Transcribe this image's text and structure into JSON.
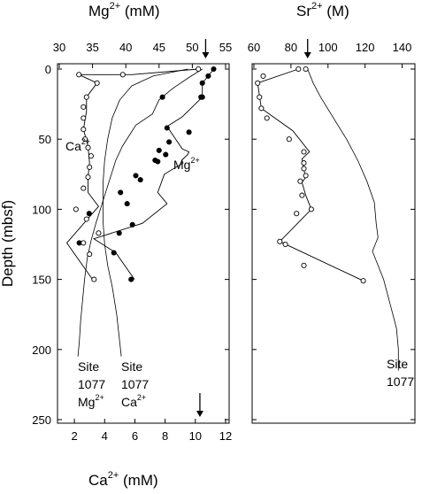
{
  "figure": {
    "ylabel": "Depth (mbsf)",
    "left_top_label": "Mg2+ (mM)",
    "left_bottom_label": "Ca2+ (mM)",
    "right_top_label": "Sr2+ (M)"
  },
  "chart_data": [
    {
      "type": "line",
      "panel": "left",
      "ylabel": "Depth (mbsf)",
      "ylim": [
        250,
        0
      ],
      "y_ticks": [
        0,
        50,
        100,
        150,
        200,
        250
      ],
      "top_axis": {
        "label": "Mg2+ (mM)",
        "range": [
          30,
          55
        ],
        "ticks": [
          30,
          35,
          40,
          45,
          50,
          55
        ]
      },
      "bottom_axis": {
        "label": "Ca2+ (mM)",
        "range": [
          1,
          12
        ],
        "ticks": [
          2,
          4,
          6,
          8,
          10,
          12
        ]
      },
      "series": [
        {
          "name": "Mg2+",
          "axis": "top",
          "marker": "filled-circle",
          "points": [
            [
              53.2,
              0
            ],
            [
              52.4,
              5
            ],
            [
              51.5,
              10
            ],
            [
              51.5,
              20
            ],
            [
              51.3,
              20
            ],
            [
              45.5,
              20
            ],
            [
              46.2,
              42
            ],
            [
              49.5,
              45
            ],
            [
              46.5,
              52
            ],
            [
              45,
              58
            ],
            [
              46,
              61
            ],
            [
              44.4,
              65
            ],
            [
              44.8,
              66
            ],
            [
              41.5,
              76
            ],
            [
              42.2,
              79
            ],
            [
              39.2,
              88
            ],
            [
              40.2,
              96
            ],
            [
              34.5,
              103
            ],
            [
              41,
              111
            ],
            [
              39,
              117
            ],
            [
              33,
              124
            ],
            [
              38.2,
              131
            ],
            [
              40.8,
              150
            ]
          ],
          "trace_points": [
            [
              53.2,
              0
            ],
            [
              52.4,
              5
            ],
            [
              51.5,
              10
            ],
            [
              51.5,
              20
            ],
            [
              48.5,
              34
            ],
            [
              46.2,
              41
            ],
            [
              47.5,
              50
            ],
            [
              48.5,
              57
            ],
            [
              49.5,
              59
            ],
            [
              49.3,
              61
            ],
            [
              48.4,
              65
            ],
            [
              48.6,
              67
            ],
            [
              45.8,
              75
            ],
            [
              44.8,
              88
            ],
            [
              46.2,
              96
            ],
            [
              42.5,
              110
            ],
            [
              35.2,
              121
            ],
            [
              38.5,
              131
            ],
            [
              41.3,
              150
            ]
          ]
        },
        {
          "name": "Ca2+",
          "axis": "bottom",
          "marker": "open-circle",
          "points": [
            [
              10.2,
              0
            ],
            [
              5.2,
              4
            ],
            [
              2.3,
              4
            ],
            [
              3.5,
              10
            ],
            [
              2.8,
              20
            ],
            [
              2.6,
              27
            ],
            [
              2.6,
              35
            ],
            [
              2.6,
              43
            ],
            [
              2.7,
              50
            ],
            [
              2.9,
              56
            ],
            [
              3.1,
              62
            ],
            [
              3.0,
              70
            ],
            [
              2.9,
              77
            ],
            [
              2.6,
              85
            ],
            [
              2.1,
              100
            ],
            [
              2.8,
              107
            ],
            [
              3.6,
              117
            ],
            [
              2.6,
              124
            ],
            [
              3.0,
              132
            ],
            [
              3.3,
              150
            ]
          ],
          "trace_points": [
            [
              10.2,
              0
            ],
            [
              5.8,
              4
            ],
            [
              2.3,
              4
            ],
            [
              3.5,
              10
            ],
            [
              2.8,
              20
            ],
            [
              2.8,
              30
            ],
            [
              2.6,
              43
            ],
            [
              2.9,
              55
            ],
            [
              3.0,
              67
            ],
            [
              2.9,
              77
            ],
            [
              2.9,
              88
            ],
            [
              3.6,
              98
            ],
            [
              1.5,
              124
            ],
            [
              3.2,
              150
            ]
          ]
        },
        {
          "name": "Site 1077 Mg2+",
          "axis": "top",
          "marker": "none",
          "points": [
            [
              51.5,
              0
            ],
            [
              49.5,
              6
            ],
            [
              47,
              14
            ],
            [
              45,
              22
            ],
            [
              44,
              32
            ],
            [
              41.5,
              40
            ],
            [
              39.5,
              55
            ],
            [
              38.5,
              65
            ],
            [
              37.5,
              80
            ],
            [
              36.5,
              95
            ],
            [
              35.5,
              110
            ],
            [
              34.8,
              122
            ],
            [
              34.2,
              135
            ],
            [
              33.8,
              150
            ],
            [
              33.5,
              165
            ],
            [
              33.2,
              180
            ],
            [
              33.0,
              195
            ],
            [
              32.8,
              205
            ]
          ]
        },
        {
          "name": "Site 1077 Ca2+",
          "axis": "bottom",
          "marker": "none",
          "points": [
            [
              9.5,
              0
            ],
            [
              7.2,
              5
            ],
            [
              5.8,
              12
            ],
            [
              5.0,
              22
            ],
            [
              4.5,
              35
            ],
            [
              4.2,
              50
            ],
            [
              4.0,
              65
            ],
            [
              3.9,
              80
            ],
            [
              3.9,
              95
            ],
            [
              3.9,
              110
            ],
            [
              4.0,
              125
            ],
            [
              4.2,
              140
            ],
            [
              4.5,
              155
            ],
            [
              4.8,
              175
            ],
            [
              5.0,
              195
            ],
            [
              5.1,
              205
            ]
          ]
        }
      ],
      "annotations": [
        {
          "text": "Ca2+",
          "near": "open-circle series"
        },
        {
          "text": "Mg2+",
          "near": "filled-circle series"
        },
        {
          "lines": [
            "Site",
            "1077",
            "Mg2+"
          ]
        },
        {
          "lines": [
            "Site",
            "1077",
            "Ca2+"
          ]
        }
      ],
      "arrows": [
        {
          "axis": "top",
          "value": 52,
          "direction": "down"
        },
        {
          "axis": "bottom",
          "value": 10.3,
          "direction": "down"
        }
      ]
    },
    {
      "type": "line",
      "panel": "right",
      "ylim": [
        250,
        0
      ],
      "top_axis": {
        "label": "Sr2+ (M)",
        "range": [
          60,
          145
        ],
        "ticks": [
          60,
          80,
          100,
          120,
          140
        ]
      },
      "series": [
        {
          "name": "Sr2+",
          "marker": "open-circle",
          "points": [
            [
              88,
              0
            ],
            [
              84,
              0
            ],
            [
              65,
              5
            ],
            [
              62,
              10
            ],
            [
              63,
              20
            ],
            [
              64,
              28
            ],
            [
              67,
              35
            ],
            [
              79,
              50
            ],
            [
              87,
              59
            ],
            [
              87,
              67
            ],
            [
              87,
              71
            ],
            [
              88,
              76
            ],
            [
              85,
              80
            ],
            [
              86,
              90
            ],
            [
              91,
              100
            ],
            [
              83,
              103
            ],
            [
              74,
              123
            ],
            [
              77,
              125
            ],
            [
              87,
              140
            ],
            [
              119,
              151
            ]
          ],
          "trace_points": [
            [
              84,
              0
            ],
            [
              62,
              10
            ],
            [
              64,
              28
            ],
            [
              81,
              44
            ],
            [
              90,
              59
            ],
            [
              86,
              64
            ],
            [
              87,
              72
            ],
            [
              88,
              77
            ],
            [
              86,
              81
            ],
            [
              88,
              90
            ],
            [
              91,
              100
            ],
            [
              74,
              123
            ],
            [
              119,
              151
            ]
          ]
        },
        {
          "name": "Site 1077",
          "marker": "none",
          "points": [
            [
              89,
              0
            ],
            [
              92,
              10
            ],
            [
              96,
              20
            ],
            [
              103,
              35
            ],
            [
              110,
              50
            ],
            [
              116,
              65
            ],
            [
              121,
              80
            ],
            [
              125,
              95
            ],
            [
              126,
              110
            ],
            [
              127,
              120
            ],
            [
              124,
              130
            ],
            [
              130,
              150
            ],
            [
              134,
              170
            ],
            [
              137,
              185
            ],
            [
              138,
              200
            ],
            [
              138,
              215
            ]
          ]
        }
      ],
      "annotations": [
        {
          "lines": [
            "Site",
            "1077"
          ]
        }
      ],
      "arrows": [
        {
          "axis": "top",
          "value": 89,
          "direction": "down"
        }
      ]
    }
  ]
}
